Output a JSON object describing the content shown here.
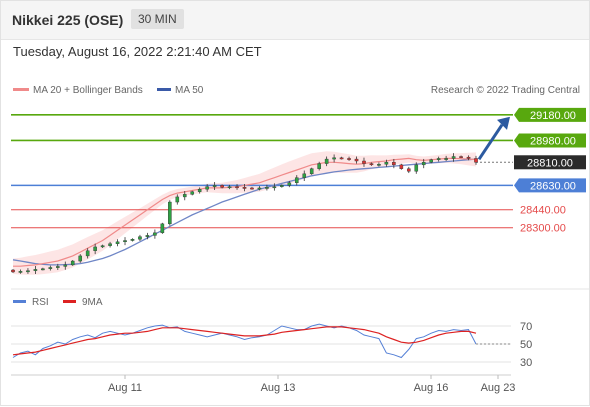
{
  "header": {
    "title": "Nikkei 225 (OSE)",
    "timeframe": "30 MIN"
  },
  "timestamp": "Tuesday, August 16, 2022 2:21:40 AM CET",
  "credit": "Research © 2022 Trading Central",
  "colors": {
    "resistance": "#58a80e",
    "support": "#e54b4b",
    "pivot": "#4d7fd6",
    "last": "#2b2b2b",
    "arrow": "#2c5aa0",
    "ma20": "#f08a8a",
    "ma50": "#6f86c6",
    "band": "#fde0e0",
    "rsi": "#5580d6",
    "rsi_ma": "#dd2222"
  },
  "chart_data": {
    "type": "candlestick",
    "legend": {
      "ma20": "MA 20 + Bollinger Bands",
      "ma50": "MA 50"
    },
    "x_labels": [
      "Aug 11",
      "Aug 13",
      "Aug 16",
      "Aug 23"
    ],
    "ylim": [
      27900,
      29280
    ],
    "levels": [
      {
        "value": 29180,
        "label": "29180.00",
        "type": "resistance"
      },
      {
        "value": 28980,
        "label": "28980.00",
        "type": "resistance"
      },
      {
        "value": 28810,
        "label": "28810.00",
        "type": "last"
      },
      {
        "value": 28630,
        "label": "28630.00",
        "type": "pivot"
      },
      {
        "value": 28440,
        "label": "28440.00",
        "type": "support"
      },
      {
        "value": 28300,
        "label": "28300.00",
        "type": "support"
      }
    ],
    "price": [
      27955,
      27960,
      27965,
      27975,
      27980,
      27990,
      27998,
      28010,
      28040,
      28080,
      28120,
      28150,
      28160,
      28175,
      28190,
      28200,
      28210,
      28230,
      28240,
      28260,
      28330,
      28500,
      28540,
      28560,
      28580,
      28600,
      28620,
      28630,
      28615,
      28620,
      28615,
      28610,
      28605,
      28610,
      28615,
      28620,
      28630,
      28650,
      28690,
      28720,
      28760,
      28800,
      28835,
      28845,
      28840,
      28835,
      28820,
      28800,
      28790,
      28795,
      28810,
      28790,
      28760,
      28740,
      28790,
      28810,
      28830,
      28840,
      28840,
      28855,
      28850,
      28840,
      28810
    ],
    "ma20": [
      28000,
      28000,
      28005,
      28010,
      28020,
      28030,
      28040,
      28060,
      28080,
      28110,
      28140,
      28170,
      28200,
      28240,
      28280,
      28320,
      28360,
      28400,
      28440,
      28480,
      28520,
      28550,
      28570,
      28580,
      28590,
      28600,
      28610,
      28610,
      28610,
      28615,
      28620,
      28630,
      28640,
      28650,
      28670,
      28690,
      28710,
      28730,
      28750,
      28770,
      28790,
      28800,
      28810,
      28810,
      28805,
      28800,
      28795,
      28800,
      28810,
      28815,
      28820,
      28830,
      28835,
      28840,
      28830,
      28825,
      28830,
      28835,
      28840,
      28840,
      28838,
      28835,
      28832
    ],
    "ma50": [
      28050,
      28040,
      28030,
      28020,
      28015,
      28010,
      28010,
      28012,
      28015,
      28020,
      28030,
      28045,
      28060,
      28080,
      28105,
      28130,
      28160,
      28190,
      28220,
      28250,
      28280,
      28310,
      28340,
      28370,
      28400,
      28425,
      28450,
      28475,
      28500,
      28520,
      28540,
      28560,
      28580,
      28600,
      28615,
      28630,
      28645,
      28660,
      28675,
      28690,
      28705,
      28715,
      28725,
      28735,
      28742,
      28750,
      28755,
      28760,
      28765,
      28770,
      28775,
      28780,
      28785,
      28790,
      28795,
      28800,
      28805,
      28810,
      28815,
      28820,
      28825,
      28830,
      28835
    ],
    "rsi": {
      "legend": [
        "RSI",
        "9MA"
      ],
      "ticks": [
        70,
        50,
        30
      ],
      "ylim": [
        20,
        80
      ],
      "rsi": [
        35,
        40,
        42,
        38,
        45,
        48,
        52,
        50,
        55,
        58,
        60,
        57,
        62,
        64,
        62,
        60,
        62,
        65,
        68,
        70,
        71,
        68,
        69,
        64,
        62,
        60,
        58,
        60,
        62,
        60,
        58,
        55,
        57,
        58,
        60,
        65,
        70,
        68,
        66,
        66,
        70,
        72,
        70,
        68,
        70,
        68,
        65,
        60,
        58,
        56,
        40,
        38,
        35,
        44,
        56,
        58,
        62,
        65,
        64,
        66,
        65,
        66,
        50
      ],
      "ma": [
        38,
        39,
        40,
        41,
        43,
        45,
        47,
        49,
        51,
        53,
        55,
        56,
        58,
        60,
        61,
        62,
        62,
        63,
        64,
        66,
        68,
        68,
        68,
        67,
        66,
        65,
        64,
        63,
        62,
        61,
        60,
        59,
        59,
        59,
        60,
        61,
        63,
        64,
        65,
        66,
        67,
        68,
        69,
        69,
        69,
        68,
        67,
        66,
        64,
        62,
        58,
        55,
        52,
        51,
        52,
        54,
        57,
        60,
        62,
        63,
        64,
        64,
        62
      ]
    }
  }
}
